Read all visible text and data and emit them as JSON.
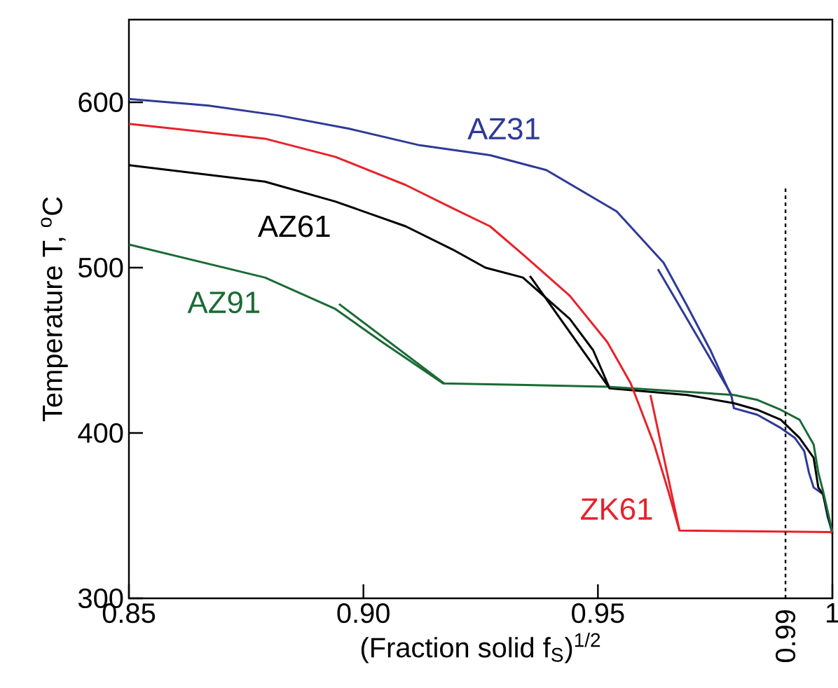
{
  "chart_data": {
    "type": "line",
    "xlabel": "(Fraction solid f$_{S}$)$^{1/2}$",
    "ylabel": "Temperature T, $^{o}$C",
    "xlim": [
      0.85,
      1
    ],
    "ylim": [
      300,
      650
    ],
    "xticks": [
      0.85,
      {
        "value": 0.9,
        "label": "0.90"
      },
      0.95,
      1
    ],
    "yticks": [
      300,
      400,
      500,
      600
    ],
    "ref_lines": [
      {
        "axis": "x",
        "value": 0.99,
        "label": "0.99",
        "line_style": "dotted",
        "color": "#000000"
      }
    ],
    "series": [
      {
        "name": "AZ31",
        "color": "#2e3a97",
        "x": [
          0.85,
          0.867,
          0.882,
          0.897,
          0.912,
          0.927,
          0.939,
          0.954,
          0.964,
          0.969,
          0.974,
          0.9785,
          0.979,
          0.984,
          0.989,
          0.992,
          0.994,
          0.995,
          0.996,
          0.998,
          0.999,
          1.0
        ],
        "values": [
          602,
          598,
          592,
          584,
          574,
          568,
          559,
          534,
          503,
          477,
          450,
          422,
          415,
          411,
          403,
          397,
          389,
          376,
          367,
          363,
          349,
          340
        ]
      },
      {
        "name": "AZ61",
        "color": "#000000",
        "x": [
          0.85,
          0.879,
          0.894,
          0.909,
          0.919,
          0.926,
          0.934,
          0.944,
          0.949,
          0.9525,
          0.969,
          0.979,
          0.984,
          0.989,
          0.993,
          0.996,
          0.997,
          0.998,
          1.0
        ],
        "values": [
          562,
          552,
          540,
          525,
          511,
          500,
          494,
          469,
          450,
          427,
          423,
          418,
          414,
          408,
          397,
          385,
          367,
          363,
          339
        ]
      },
      {
        "name": "AZ91",
        "color": "#1a6b35",
        "x": [
          0.85,
          0.879,
          0.894,
          0.904,
          0.917,
          0.952,
          0.979,
          0.984,
          0.989,
          0.993,
          0.996,
          0.997,
          0.998,
          1.0
        ],
        "values": [
          514,
          494,
          475,
          455,
          430,
          428,
          423,
          420,
          414,
          408,
          393,
          376,
          365,
          340
        ]
      },
      {
        "name": "ZK61",
        "color": "#e8212a",
        "x": [
          0.85,
          0.879,
          0.894,
          0.909,
          0.919,
          0.927,
          0.934,
          0.944,
          0.952,
          0.957,
          0.962,
          0.965,
          0.9674,
          1.0
        ],
        "values": [
          587,
          578,
          567,
          550,
          536,
          525,
          508,
          483,
          455,
          430,
          393,
          365,
          341,
          340
        ]
      },
      {
        "type": "line",
        "color": "#2e3a97",
        "x": [
          0.9628,
          0.9785
        ],
        "values": [
          499,
          423
        ]
      },
      {
        "type": "line",
        "color": "#000000",
        "x": [
          0.9355,
          0.9525
        ],
        "values": [
          495,
          427
        ]
      },
      {
        "type": "line",
        "color": "#1a6b35",
        "x": [
          0.8948,
          0.9172
        ],
        "values": [
          478,
          430
        ]
      },
      {
        "type": "line",
        "color": "#e8212a",
        "x": [
          0.9612,
          0.9674
        ],
        "values": [
          423,
          341
        ]
      }
    ]
  }
}
